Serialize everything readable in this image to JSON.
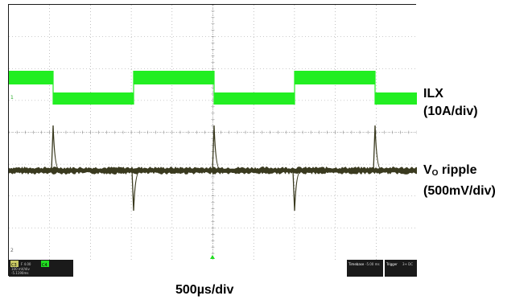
{
  "labels": {
    "ilx": "ILX",
    "ilx_scale": "(10A/div)",
    "vo_prefix": "V",
    "vo_sub": "O",
    "vo_suffix": " ripple",
    "vo_scale": "(500mV/div)",
    "timebase": "500µs/div"
  },
  "status_bar": {
    "ch3_tag": "C3",
    "ch3_line1": "F 4.00",
    "ch3_line2": "100 mV/div",
    "ch3_line3": "-5.1190ms",
    "ch4_tag": "C4",
    "timebase_title": "Timebase",
    "timebase_value": "-5.00 ms",
    "trigger_title": "Trigger",
    "trigger_value": "3+ DC"
  },
  "colors": {
    "inductor_current": "#22ee22",
    "output_ripple": "#3a3a1f",
    "grid": "#9a9a9a",
    "status_bg": "#1a1a1a",
    "ch3_tag": "#c8c864",
    "ch4_tag": "#22dd22"
  },
  "markers": {
    "ch1_marker": "1",
    "ch2_marker": "2"
  }
}
